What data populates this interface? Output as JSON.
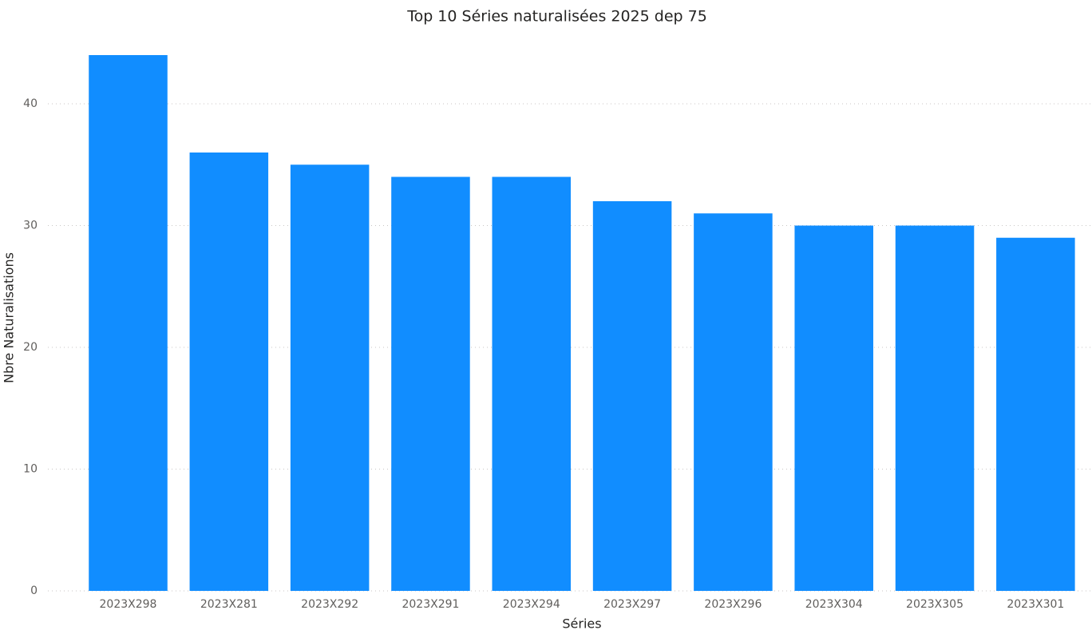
{
  "chart_data": {
    "type": "bar",
    "title": "Top 10 Séries naturalisées 2025 dep 75",
    "x_label": "Séries",
    "y_label": "Nbre Naturalisations",
    "categories": [
      "2023X298",
      "2023X281",
      "2023X292",
      "2023X291",
      "2023X294",
      "2023X297",
      "2023X296",
      "2023X304",
      "2023X305",
      "2023X301"
    ],
    "values": [
      44,
      36,
      35,
      34,
      34,
      32,
      31,
      30,
      30,
      29
    ],
    "color": "#118DFF",
    "ylim": [
      0,
      44
    ],
    "yticks": [
      0,
      10,
      20,
      30,
      40
    ],
    "grid": true
  }
}
